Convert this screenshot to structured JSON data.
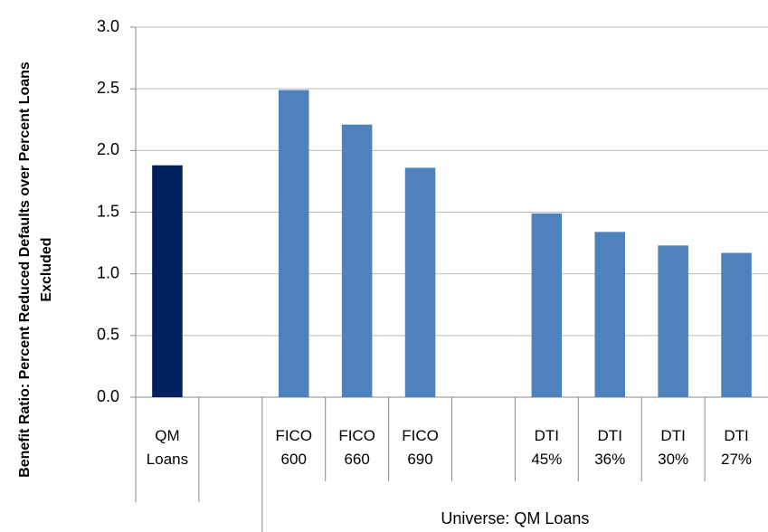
{
  "chart_data": {
    "type": "bar",
    "y_label": "Benefit Ratio: Percent Reduced Defaults over Percent Loans Excluded",
    "categories": [
      "QM Loans",
      null,
      "FICO 600",
      "FICO 660",
      "FICO 690",
      null,
      "DTI 45%",
      "DTI 36%",
      "DTI 30%",
      "DTI 27%"
    ],
    "values": [
      1.88,
      null,
      2.49,
      2.21,
      1.86,
      null,
      1.49,
      1.34,
      1.23,
      1.17
    ],
    "colors": [
      "#002060",
      null,
      "#4f81bd",
      "#4f81bd",
      "#4f81bd",
      null,
      "#4f81bd",
      "#4f81bd",
      "#4f81bd",
      "#4f81bd"
    ],
    "groups": [
      {
        "label": "Universe: QM Loans",
        "start": 2,
        "end": 9
      }
    ],
    "ylim": [
      0,
      3
    ],
    "yticks": [
      {
        "value": 0,
        "label": "0.0"
      },
      0.5,
      {
        "value": 1,
        "label": "1.0"
      },
      1.5,
      {
        "value": 2,
        "label": "2.0"
      },
      2.5,
      {
        "value": 3,
        "label": "3.0"
      }
    ],
    "grid": true
  }
}
